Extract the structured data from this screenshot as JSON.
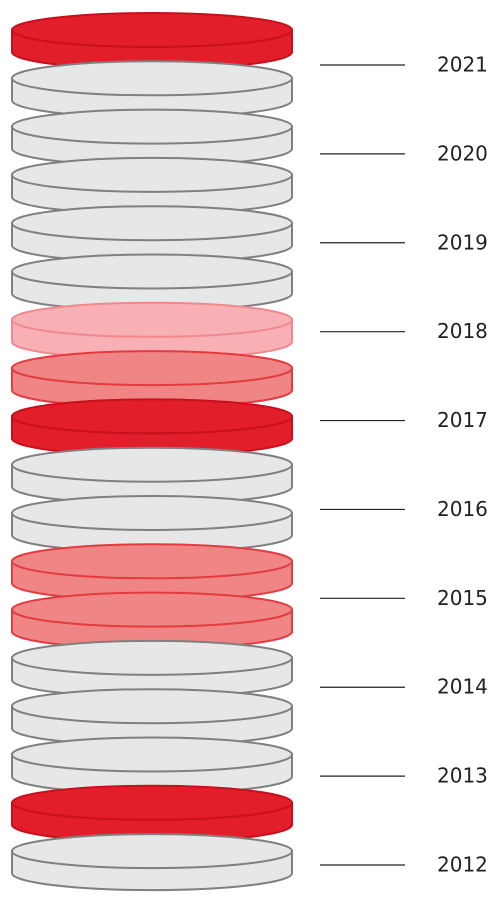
{
  "labels": [
    "2021",
    "2020",
    "2019",
    "2018",
    "2017",
    "2016",
    "2015",
    "2014",
    "2013",
    "2012"
  ]
}
